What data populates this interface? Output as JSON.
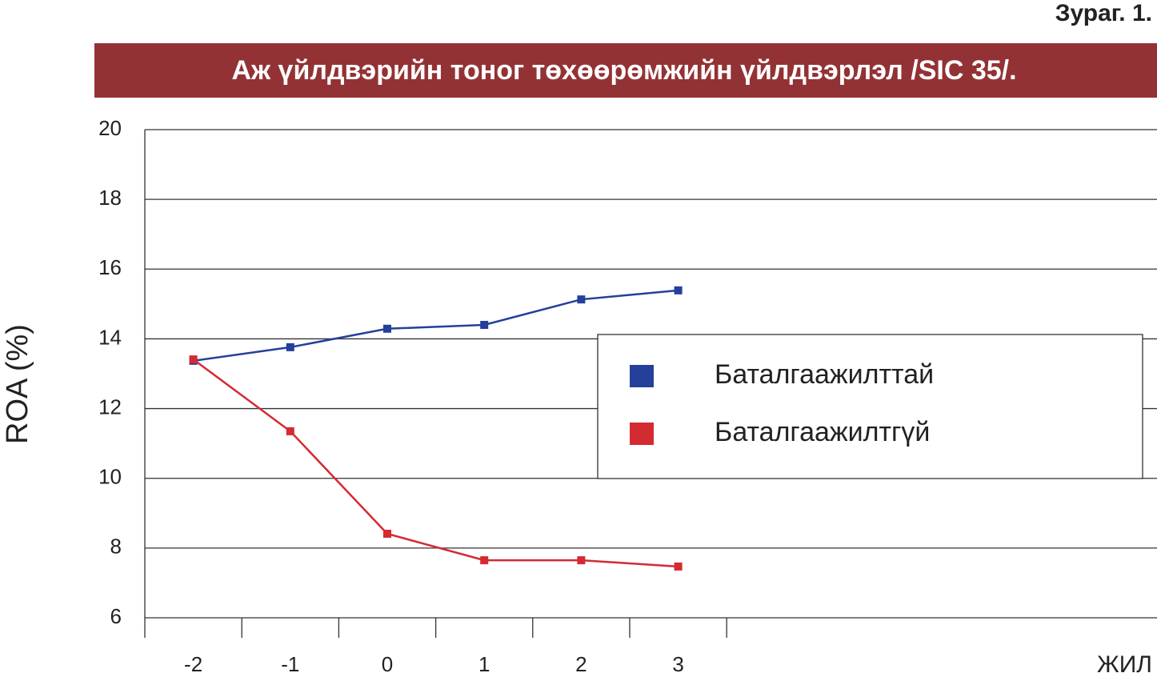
{
  "figure_label": "Зураг. 1.",
  "chart_data": {
    "type": "line",
    "title": "Аж үйлдвэрийн тоног төхөөрөмжийн үйлдвэрлэл /SIC 35/.",
    "y_label": "ROA (%)",
    "x_label": "ЖИЛ",
    "categories": [
      "-2",
      "-1",
      "0",
      "1",
      "2",
      "3"
    ],
    "series": [
      {
        "name": "Баталгаажилттай",
        "color": "#25409a",
        "values": [
          13.37,
          13.76,
          14.29,
          14.4,
          15.13,
          15.39
        ]
      },
      {
        "name": "Баталгаажилтгүй",
        "color": "#d42a32",
        "values": [
          13.41,
          11.35,
          8.41,
          7.65,
          7.65,
          7.47
        ]
      }
    ],
    "ylim": [
      6,
      20
    ],
    "yticks": [
      6,
      8,
      10,
      12,
      14,
      16,
      18,
      20
    ],
    "grid": true
  }
}
